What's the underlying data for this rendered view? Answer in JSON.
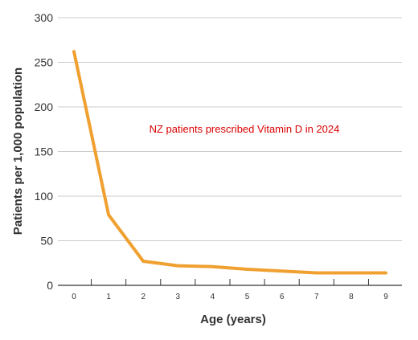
{
  "chart_data": {
    "type": "line",
    "title": "",
    "xlabel": "Age (years)",
    "ylabel": "Patients per 1,000 population",
    "x_ticks": [
      "0",
      "1",
      "2",
      "3",
      "4",
      "5",
      "6",
      "7",
      "8",
      "9"
    ],
    "y_ticks": [
      "0",
      "50",
      "100",
      "150",
      "200",
      "250",
      "300"
    ],
    "xlim": [
      0,
      9
    ],
    "ylim": [
      0,
      300
    ],
    "grid": true,
    "annotation": "NZ patients prescribed Vitamin D in 2024",
    "series": [
      {
        "x": [
          0,
          1,
          2,
          3,
          4,
          5,
          6,
          7,
          8,
          9
        ],
        "values": [
          262,
          79,
          27,
          22,
          21,
          18,
          16,
          14,
          14,
          14
        ]
      }
    ]
  },
  "colors": {
    "line": "#F0A030",
    "annotation": "#D90000",
    "grid": "#CCCCCC",
    "axis": "#333333",
    "text": "#333333"
  }
}
